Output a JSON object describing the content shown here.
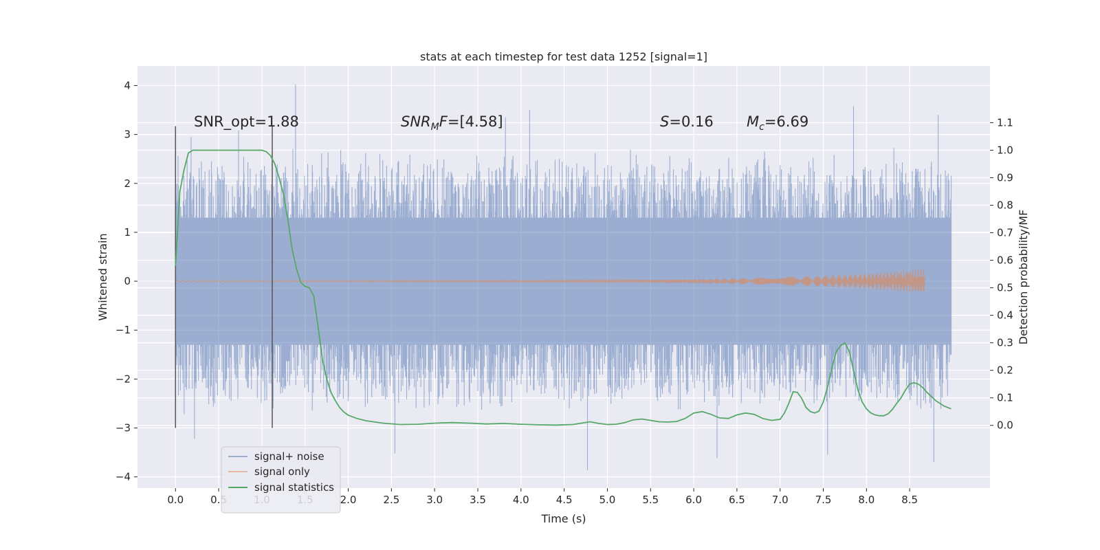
{
  "chart_data": {
    "type": "line",
    "title": "stats at each timestep for test data 1252 [signal=1]",
    "xlabel": "Time (s)",
    "ylabel": "Whitened strain",
    "ylabel_right": "Detection probability/MF",
    "xlim": [
      -0.44,
      9.43
    ],
    "ylim": [
      -4.23,
      4.4
    ],
    "ylim_right": [
      -0.228,
      1.306
    ],
    "grid": true,
    "background": "#eaeaf2",
    "x_ticks": [
      "0.0",
      "0.5",
      "1.0",
      "1.5",
      "2.0",
      "2.5",
      "3.0",
      "3.5",
      "4.0",
      "4.5",
      "5.0",
      "5.5",
      "6.0",
      "6.5",
      "7.0",
      "7.5",
      "8.0",
      "8.5"
    ],
    "y_ticks": [
      "4",
      "3",
      "2",
      "1",
      "0",
      "−1",
      "−2",
      "−3",
      "−4"
    ],
    "y_right_ticks": [
      "1.1",
      "1.0",
      "0.9",
      "0.8",
      "0.7",
      "0.6",
      "0.5",
      "0.4",
      "0.3",
      "0.2",
      "0.1",
      "0.0"
    ],
    "annotations": {
      "snr_opt": "SNR_opt=1.88",
      "snr_mf": "[4.58]",
      "s": "=0.16",
      "mc": "=6.69"
    },
    "legend_position": "lower-left",
    "series": [
      {
        "name": "signal+ noise",
        "color": "#4c72b0",
        "kind": "whitened-strain",
        "x_range": [
          0.0,
          8.98
        ],
        "band": [
          -1.3,
          1.3
        ],
        "extremes": {
          "max": [
            [
              1.39,
              4.02
            ],
            [
              3.82,
              3.35
            ],
            [
              4.1,
              3.5
            ],
            [
              7.85,
              3.58
            ],
            [
              8.83,
              3.4
            ],
            [
              0.18,
              2.95
            ],
            [
              0.73,
              3.08
            ]
          ],
          "min": [
            [
              0.22,
              -3.22
            ],
            [
              2.54,
              -3.52
            ],
            [
              4.77,
              -3.87
            ],
            [
              6.27,
              -3.62
            ],
            [
              7.55,
              -3.55
            ],
            [
              8.78,
              -3.7
            ],
            [
              0.1,
              -2.72
            ]
          ]
        }
      },
      {
        "name": "signal only",
        "color": "#dd8452",
        "kind": "chirp",
        "x_range": [
          0.0,
          8.68
        ],
        "final_amplitude": 0.24
      },
      {
        "name": "signal statistics",
        "color": "#55a868",
        "axis": "right",
        "x": [
          0.0,
          0.05,
          0.1,
          0.15,
          0.2,
          0.3,
          0.5,
          0.8,
          1.0,
          1.05,
          1.1,
          1.15,
          1.2,
          1.25,
          1.3,
          1.35,
          1.4,
          1.45,
          1.5,
          1.55,
          1.6,
          1.65,
          1.7,
          1.75,
          1.8,
          1.85,
          1.9,
          1.95,
          2.0,
          2.1,
          2.2,
          2.4,
          2.6,
          2.8,
          3.0,
          3.2,
          3.4,
          3.6,
          3.8,
          4.0,
          4.2,
          4.4,
          4.6,
          4.7,
          4.8,
          4.9,
          5.0,
          5.1,
          5.2,
          5.3,
          5.4,
          5.5,
          5.6,
          5.7,
          5.8,
          5.9,
          6.0,
          6.1,
          6.2,
          6.3,
          6.4,
          6.5,
          6.6,
          6.7,
          6.8,
          6.9,
          7.0,
          7.05,
          7.1,
          7.15,
          7.2,
          7.25,
          7.3,
          7.35,
          7.4,
          7.45,
          7.5,
          7.55,
          7.6,
          7.65,
          7.7,
          7.75,
          7.8,
          7.85,
          7.9,
          7.95,
          8.0,
          8.05,
          8.1,
          8.15,
          8.2,
          8.25,
          8.3,
          8.35,
          8.4,
          8.45,
          8.5,
          8.55,
          8.6,
          8.65,
          8.7,
          8.8,
          8.9,
          8.98
        ],
        "values": [
          0.58,
          0.85,
          0.93,
          0.99,
          1.0,
          1.0,
          1.0,
          1.0,
          1.0,
          0.995,
          0.98,
          0.95,
          0.9,
          0.84,
          0.75,
          0.64,
          0.57,
          0.52,
          0.505,
          0.5,
          0.47,
          0.36,
          0.24,
          0.17,
          0.12,
          0.09,
          0.065,
          0.048,
          0.037,
          0.025,
          0.017,
          0.008,
          0.003,
          0.004,
          0.008,
          0.01,
          0.008,
          0.005,
          0.007,
          0.004,
          0.002,
          0.001,
          0.003,
          0.008,
          0.013,
          0.007,
          0.003,
          0.004,
          0.01,
          0.02,
          0.023,
          0.018,
          0.013,
          0.012,
          0.014,
          0.025,
          0.045,
          0.05,
          0.04,
          0.027,
          0.025,
          0.038,
          0.045,
          0.04,
          0.025,
          0.018,
          0.022,
          0.045,
          0.08,
          0.122,
          0.12,
          0.098,
          0.065,
          0.05,
          0.045,
          0.052,
          0.085,
          0.14,
          0.21,
          0.268,
          0.29,
          0.3,
          0.27,
          0.2,
          0.13,
          0.085,
          0.06,
          0.045,
          0.038,
          0.035,
          0.035,
          0.042,
          0.058,
          0.08,
          0.1,
          0.128,
          0.15,
          0.155,
          0.15,
          0.138,
          0.12,
          0.09,
          0.07,
          0.06
        ]
      }
    ],
    "markers": [
      {
        "x": 0.0,
        "y0": -3.0,
        "y1": 3.17
      },
      {
        "x": 1.12,
        "y0": -3.0,
        "y1": 3.17
      }
    ]
  }
}
